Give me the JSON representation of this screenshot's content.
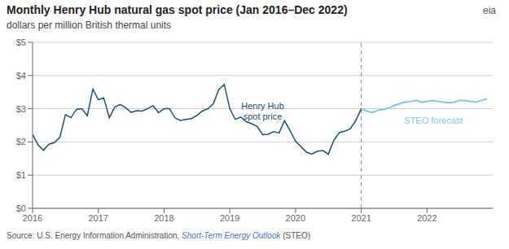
{
  "chart_data": {
    "type": "line",
    "title": "Monthly Henry Hub natural gas spot price (Jan 2016–Dec 2022)",
    "subtitle": "dollars per million British thermal units",
    "source": [
      {
        "text": "Source: U.S. Energy Information Administration, ",
        "color": "#555555"
      },
      {
        "text": "Short-Term Energy Outlook",
        "color": "#4472c4"
      },
      {
        "text": " (STEO)",
        "color": "#555555"
      }
    ],
    "corner_text": "eia",
    "xlim": [
      2016.0,
      2023.0
    ],
    "xticks": [
      2016,
      2017,
      2018,
      2019,
      2020,
      2021,
      2022
    ],
    "ylim": [
      0,
      5
    ],
    "yticks": [
      {
        "value": 0,
        "label": "$0"
      },
      {
        "value": 1,
        "label": "$1"
      },
      {
        "value": 2,
        "label": "$2"
      },
      {
        "value": 3,
        "label": "$3"
      },
      {
        "value": 4,
        "label": "$4"
      },
      {
        "value": 5,
        "label": "$5"
      }
    ],
    "grid": true,
    "vlines": [
      {
        "x": 2021.0,
        "color": "#888888",
        "line_style": "dashed"
      }
    ],
    "annotations": [
      {
        "text": "Henry Hub\nspot price",
        "x": 2019.5,
        "y": 2.9,
        "color": "#1a5276"
      },
      {
        "text": "STEO forecast",
        "x": 2022.1,
        "y": 2.62,
        "color": "#7ec8e3"
      }
    ],
    "series": [
      {
        "color": "#1a5276",
        "x": [
          2016.0,
          2016.083,
          2016.167,
          2016.25,
          2016.333,
          2016.417,
          2016.5,
          2016.583,
          2016.667,
          2016.75,
          2016.833,
          2016.917,
          2017.0,
          2017.083,
          2017.167,
          2017.25,
          2017.333,
          2017.417,
          2017.5,
          2017.583,
          2017.667,
          2017.75,
          2017.833,
          2017.917,
          2018.0,
          2018.083,
          2018.167,
          2018.25,
          2018.333,
          2018.417,
          2018.5,
          2018.583,
          2018.667,
          2018.75,
          2018.833,
          2018.917,
          2019.0,
          2019.083,
          2019.167,
          2019.25,
          2019.333,
          2019.417,
          2019.5,
          2019.583,
          2019.667,
          2019.75,
          2019.833,
          2019.917,
          2020.0,
          2020.083,
          2020.167,
          2020.25,
          2020.333,
          2020.417,
          2020.5,
          2020.583,
          2020.667,
          2020.75,
          2020.833,
          2020.917,
          2021.0
        ],
        "values": [
          2.23,
          1.91,
          1.75,
          1.93,
          1.98,
          2.15,
          2.82,
          2.73,
          2.98,
          3.0,
          2.79,
          3.59,
          3.27,
          3.33,
          2.73,
          3.05,
          3.13,
          3.03,
          2.89,
          2.94,
          2.93,
          3.0,
          3.09,
          2.88,
          3.0,
          3.0,
          2.72,
          2.65,
          2.68,
          2.7,
          2.8,
          2.93,
          3.0,
          3.15,
          3.58,
          3.73,
          3.0,
          2.68,
          2.75,
          2.61,
          2.55,
          2.47,
          2.22,
          2.23,
          2.31,
          2.27,
          2.64,
          2.34,
          2.02,
          1.86,
          1.69,
          1.63,
          1.72,
          1.74,
          1.63,
          2.05,
          2.28,
          2.32,
          2.4,
          2.64,
          3.0
        ]
      },
      {
        "color": "#7ec8e3",
        "x": [
          2021.0,
          2021.083,
          2021.167,
          2021.25,
          2021.333,
          2021.417,
          2021.5,
          2021.583,
          2021.667,
          2021.75,
          2021.833,
          2021.917,
          2022.0,
          2022.083,
          2022.167,
          2022.25,
          2022.333,
          2022.417,
          2022.5,
          2022.583,
          2022.667,
          2022.75,
          2022.833,
          2022.917
        ],
        "values": [
          3.0,
          2.93,
          2.88,
          2.95,
          2.98,
          3.02,
          3.1,
          3.15,
          3.2,
          3.22,
          3.25,
          3.2,
          3.22,
          3.25,
          3.22,
          3.2,
          3.18,
          3.2,
          3.25,
          3.25,
          3.22,
          3.2,
          3.25,
          3.3
        ]
      }
    ]
  }
}
